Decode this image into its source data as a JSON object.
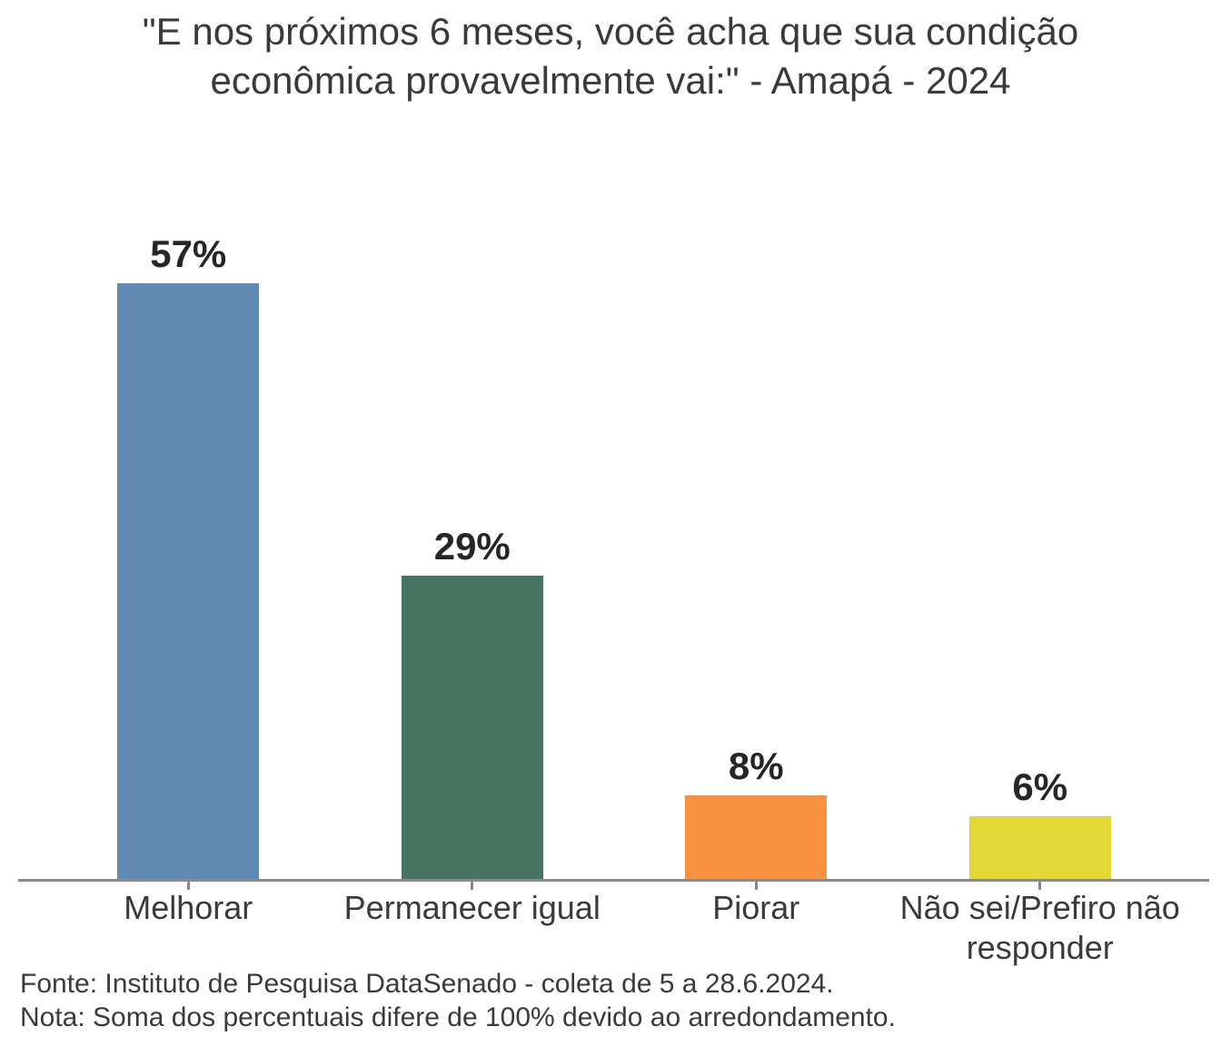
{
  "chart_data": {
    "type": "bar",
    "title": "\"E nos próximos 6 meses, você acha que sua condição econômica provavelmente vai:\" - Amapá - 2024",
    "categories": [
      "Melhorar",
      "Permanecer igual",
      "Piorar",
      "Não sei/Prefiro não\nresponder"
    ],
    "values": [
      57,
      29,
      8,
      6
    ],
    "value_labels": [
      "57%",
      "29%",
      "8%",
      "6%"
    ],
    "bar_colors": [
      "#6289B2",
      "#467362",
      "#F99240",
      "#E3D836"
    ],
    "axis_color": "#8A8A8A",
    "text_color": "#3A3A3A",
    "value_label_color": "#262626",
    "xlabel": "",
    "ylabel": "",
    "ylim": [
      0,
      60
    ],
    "grid": false,
    "legend": false,
    "notes": {
      "source": "Fonte: Instituto de Pesquisa DataSenado - coleta de 5 a 28.6.2024.",
      "rounding": "Nota: Soma dos percentuais difere de 100% devido ao arredondamento."
    }
  }
}
